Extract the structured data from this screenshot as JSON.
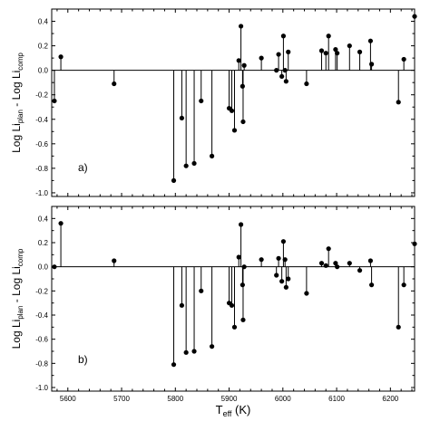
{
  "chart_data": [
    {
      "type": "scatter",
      "panel_label": "a)",
      "ylabel": {
        "main": "Log Li",
        "sub1": "plan",
        "mid": " - Log Li",
        "sub2": "comp"
      },
      "xlim": [
        5570,
        6245
      ],
      "ylim": [
        -1.03,
        0.5
      ],
      "yticks": [
        -1.0,
        -0.8,
        -0.6,
        -0.4,
        -0.2,
        0.0,
        0.2,
        0.4
      ],
      "ytick_labels": [
        "-1.0",
        "-0.8",
        "-0.6",
        "-0.4",
        "-0.2",
        "0.0",
        "0.2",
        "0.4"
      ],
      "zero_line": true,
      "stems": true,
      "x": [
        5575,
        5587,
        5686,
        5797,
        5812,
        5820,
        5835,
        5848,
        5868,
        5900,
        5905,
        5910,
        5918,
        5922,
        5925,
        5926,
        5928,
        5960,
        5988,
        5992,
        5998,
        6001,
        6004,
        6006,
        6010,
        6044,
        6072,
        6080,
        6085,
        6098,
        6101,
        6124,
        6143,
        6163,
        6165,
        6215,
        6225,
        6245
      ],
      "y": [
        -0.25,
        0.11,
        -0.11,
        -0.9,
        -0.39,
        -0.78,
        -0.76,
        -0.25,
        -0.7,
        -0.31,
        -0.33,
        -0.49,
        0.08,
        0.36,
        -0.13,
        -0.42,
        0.04,
        0.1,
        0.0,
        0.13,
        -0.05,
        0.28,
        0.0,
        -0.09,
        0.15,
        -0.11,
        0.16,
        0.14,
        0.28,
        0.17,
        0.14,
        0.2,
        0.15,
        0.24,
        0.05,
        -0.26,
        0.09,
        0.44
      ]
    },
    {
      "type": "scatter",
      "panel_label": "b)",
      "ylabel": {
        "main": "Log Li",
        "sub1": "plan",
        "mid": " - Log Li",
        "sub2": "comp"
      },
      "xlabel": {
        "main": "T",
        "sub": "eff",
        "tail": " (K)"
      },
      "xlim": [
        5570,
        6245
      ],
      "ylim": [
        -1.03,
        0.5
      ],
      "xticks": [
        5600,
        5700,
        5800,
        5900,
        6000,
        6100,
        6200
      ],
      "xtick_labels": [
        "5600",
        "5700",
        "5800",
        "5900",
        "6000",
        "6100",
        "6200"
      ],
      "yticks": [
        -1.0,
        -0.8,
        -0.6,
        -0.4,
        -0.2,
        0.0,
        0.2,
        0.4
      ],
      "ytick_labels": [
        "-1.0",
        "-0.8",
        "-0.6",
        "-0.4",
        "-0.2",
        "0.0",
        "0.2",
        "0.4"
      ],
      "zero_line": true,
      "stems": true,
      "x": [
        5575,
        5587,
        5686,
        5797,
        5812,
        5820,
        5835,
        5848,
        5868,
        5900,
        5905,
        5910,
        5918,
        5922,
        5925,
        5926,
        5928,
        5960,
        5988,
        5992,
        5998,
        6001,
        6004,
        6006,
        6010,
        6044,
        6072,
        6080,
        6085,
        6098,
        6101,
        6124,
        6143,
        6163,
        6165,
        6215,
        6225,
        6245
      ],
      "y": [
        0.0,
        0.36,
        0.05,
        -0.81,
        -0.32,
        -0.71,
        -0.7,
        -0.2,
        -0.66,
        -0.3,
        -0.32,
        -0.5,
        0.08,
        0.35,
        -0.15,
        -0.44,
        0.0,
        0.06,
        -0.07,
        0.07,
        -0.12,
        0.21,
        0.06,
        -0.17,
        -0.1,
        -0.22,
        0.03,
        0.01,
        0.15,
        0.03,
        0.0,
        0.03,
        -0.03,
        0.05,
        -0.15,
        -0.5,
        -0.15,
        0.19
      ]
    }
  ]
}
